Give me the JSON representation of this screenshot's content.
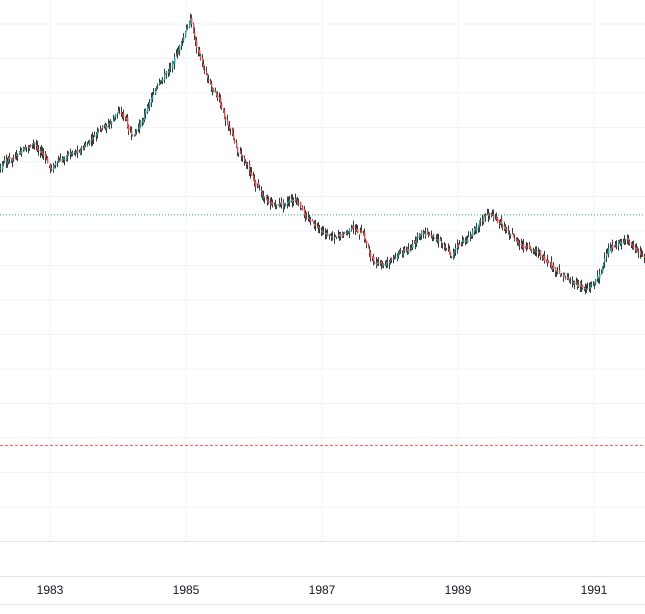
{
  "colors": {
    "background": "#ffffff",
    "grid": "#f0f3fa",
    "up": "#26a69a",
    "down": "#ef5350",
    "wick": "#3a3a3a",
    "reference_line_green": "#26a69a",
    "reference_line_red": "#ef5350",
    "axis_border": "#e0e3eb",
    "label_text": "#131722"
  },
  "chart_data": {
    "type": "candlestick",
    "title": "",
    "xlabel": "",
    "ylabel": "",
    "x_tick_labels": [
      "1983",
      "1985",
      "1987",
      "1989",
      "1991"
    ],
    "x_range": [
      1982.0,
      1991.75
    ],
    "y_range": [
      0,
      540
    ],
    "grid": true,
    "reference_lines": [
      {
        "style": "dotted",
        "color": "green",
        "value": 214
      },
      {
        "style": "dashed",
        "color": "red",
        "value": 444
      }
    ],
    "series": {
      "x": [
        1982.0,
        1982.15,
        1982.3,
        1982.45,
        1982.6,
        1982.75,
        1982.9,
        1983.0,
        1983.15,
        1983.3,
        1983.45,
        1983.6,
        1983.75,
        1983.9,
        1984.0,
        1984.1,
        1984.2,
        1984.35,
        1984.5,
        1984.65,
        1984.8,
        1984.95,
        1985.05,
        1985.15,
        1985.25,
        1985.35,
        1985.45,
        1985.55,
        1985.65,
        1985.75,
        1985.9,
        1986.0,
        1986.15,
        1986.3,
        1986.45,
        1986.6,
        1986.75,
        1986.9,
        1987.0,
        1987.15,
        1987.3,
        1987.45,
        1987.6,
        1987.75,
        1987.9,
        1988.0,
        1988.15,
        1988.3,
        1988.45,
        1988.6,
        1988.75,
        1988.9,
        1989.0,
        1989.15,
        1989.3,
        1989.45,
        1989.6,
        1989.75,
        1989.9,
        1990.0,
        1990.15,
        1990.3,
        1990.45,
        1990.6,
        1990.75,
        1990.9,
        1991.0,
        1991.1,
        1991.2,
        1991.35,
        1991.5,
        1991.6,
        1991.75
      ],
      "y": [
        178,
        190,
        162,
        158,
        150,
        143,
        155,
        168,
        160,
        152,
        150,
        140,
        128,
        122,
        110,
        118,
        138,
        120,
        95,
        78,
        62,
        40,
        18,
        45,
        68,
        85,
        95,
        115,
        130,
        150,
        165,
        182,
        198,
        205,
        203,
        200,
        215,
        226,
        232,
        236,
        234,
        228,
        235,
        262,
        265,
        260,
        252,
        248,
        232,
        236,
        242,
        255,
        244,
        238,
        222,
        212,
        222,
        232,
        245,
        248,
        250,
        262,
        272,
        278,
        285,
        288,
        282,
        270,
        250,
        242,
        240,
        248,
        258
      ]
    }
  }
}
